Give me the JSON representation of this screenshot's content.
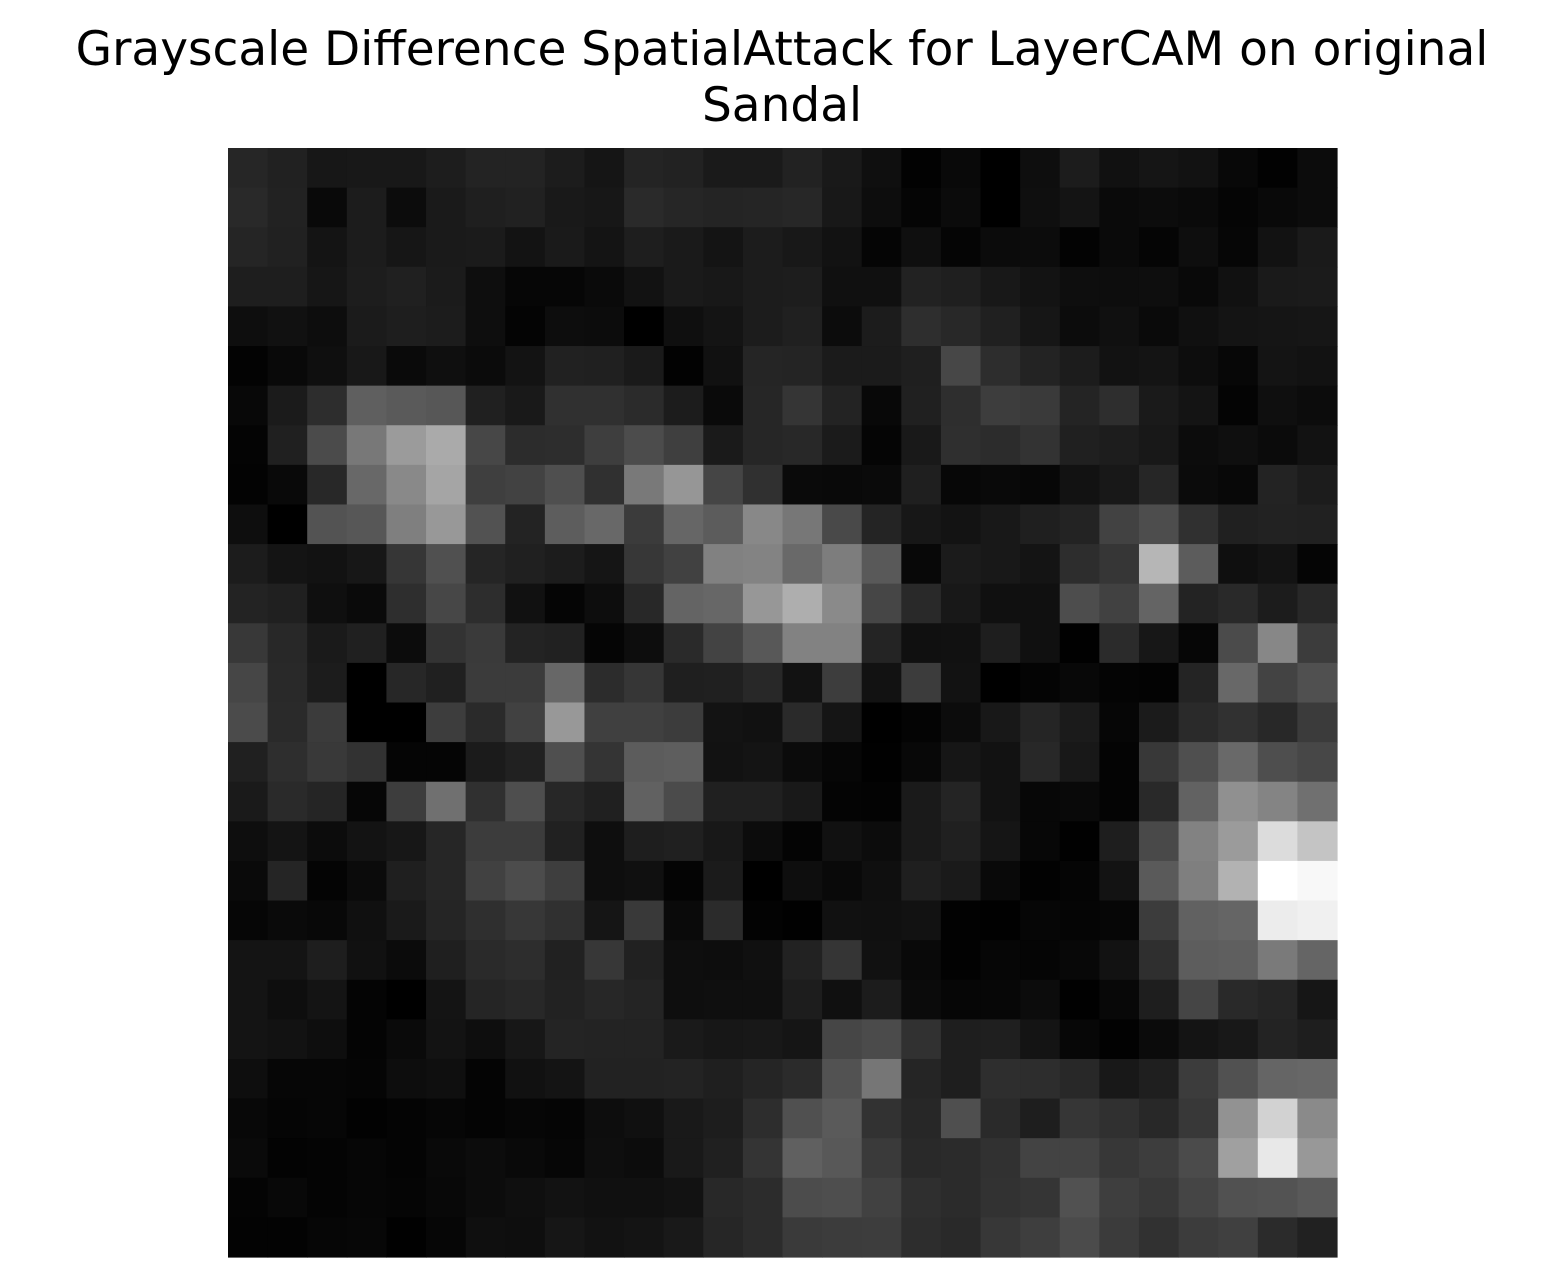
{
  "chart_data": {
    "type": "heatmap",
    "title_lines": [
      "Grayscale Difference SpatialAttack for LayerCAM on original",
      "Sandal"
    ],
    "colormap": "gray",
    "axes_visible": false,
    "grid": false,
    "legend": "none",
    "rows": 28,
    "cols": 28,
    "values": [
      [
        38,
        33,
        23,
        24,
        24,
        29,
        35,
        35,
        28,
        21,
        36,
        34,
        26,
        26,
        34,
        25,
        15,
        2,
        9,
        0,
        14,
        28,
        17,
        21,
        18,
        8,
        2,
        12
      ],
      [
        41,
        34,
        9,
        28,
        12,
        26,
        31,
        33,
        25,
        23,
        42,
        38,
        36,
        37,
        39,
        24,
        13,
        5,
        11,
        0,
        15,
        20,
        10,
        12,
        10,
        5,
        9,
        12
      ],
      [
        37,
        33,
        20,
        28,
        22,
        26,
        27,
        19,
        26,
        20,
        30,
        26,
        20,
        28,
        24,
        18,
        5,
        15,
        5,
        11,
        12,
        3,
        10,
        5,
        14,
        6,
        18,
        26
      ],
      [
        30,
        30,
        22,
        29,
        32,
        27,
        14,
        6,
        6,
        10,
        18,
        26,
        24,
        28,
        29,
        16,
        16,
        34,
        31,
        24,
        19,
        14,
        13,
        14,
        9,
        17,
        26,
        27
      ],
      [
        14,
        17,
        13,
        27,
        30,
        28,
        14,
        4,
        13,
        12,
        0,
        15,
        20,
        28,
        32,
        12,
        28,
        46,
        40,
        32,
        22,
        12,
        16,
        10,
        16,
        20,
        21,
        22
      ],
      [
        3,
        9,
        15,
        24,
        10,
        15,
        11,
        19,
        33,
        32,
        26,
        2,
        17,
        37,
        36,
        27,
        27,
        31,
        71,
        45,
        35,
        28,
        18,
        20,
        13,
        7,
        20,
        18
      ],
      [
        8,
        27,
        45,
        95,
        90,
        87,
        32,
        25,
        48,
        48,
        43,
        28,
        10,
        38,
        53,
        35,
        8,
        32,
        46,
        61,
        58,
        36,
        46,
        26,
        20,
        4,
        15,
        12
      ],
      [
        4,
        32,
        75,
        120,
        155,
        170,
        71,
        44,
        45,
        62,
        76,
        63,
        26,
        38,
        40,
        27,
        5,
        25,
        47,
        44,
        51,
        32,
        29,
        24,
        12,
        15,
        11,
        18
      ],
      [
        3,
        9,
        40,
        104,
        137,
        165,
        63,
        66,
        79,
        48,
        121,
        150,
        69,
        48,
        10,
        9,
        10,
        31,
        7,
        9,
        7,
        18,
        24,
        38,
        11,
        8,
        35,
        28
      ],
      [
        14,
        0,
        83,
        87,
        127,
        152,
        82,
        35,
        93,
        104,
        59,
        102,
        92,
        136,
        119,
        73,
        36,
        23,
        19,
        24,
        31,
        35,
        66,
        77,
        48,
        32,
        34,
        33
      ],
      [
        28,
        20,
        18,
        23,
        54,
        80,
        37,
        32,
        28,
        21,
        55,
        65,
        129,
        131,
        105,
        125,
        89,
        8,
        27,
        24,
        20,
        45,
        54,
        182,
        92,
        15,
        19,
        5
      ],
      [
        35,
        32,
        15,
        10,
        46,
        71,
        45,
        17,
        5,
        13,
        40,
        100,
        103,
        151,
        174,
        138,
        70,
        41,
        24,
        16,
        16,
        77,
        65,
        100,
        35,
        41,
        28,
        40
      ],
      [
        56,
        40,
        26,
        32,
        12,
        51,
        58,
        35,
        33,
        5,
        13,
        42,
        67,
        88,
        130,
        130,
        36,
        16,
        17,
        30,
        16,
        1,
        43,
        23,
        6,
        75,
        135,
        60
      ],
      [
        70,
        41,
        28,
        0,
        39,
        32,
        59,
        59,
        103,
        44,
        54,
        31,
        32,
        40,
        18,
        61,
        18,
        60,
        18,
        0,
        4,
        8,
        4,
        3,
        36,
        104,
        67,
        80
      ],
      [
        75,
        42,
        59,
        0,
        0,
        61,
        42,
        65,
        152,
        64,
        64,
        60,
        19,
        17,
        42,
        21,
        0,
        4,
        12,
        24,
        37,
        27,
        6,
        27,
        42,
        49,
        40,
        59
      ],
      [
        32,
        46,
        57,
        50,
        5,
        5,
        27,
        33,
        79,
        52,
        92,
        94,
        18,
        20,
        11,
        6,
        1,
        8,
        22,
        18,
        40,
        24,
        4,
        56,
        79,
        105,
        78,
        71
      ],
      [
        26,
        42,
        37,
        6,
        61,
        112,
        48,
        78,
        39,
        32,
        97,
        75,
        32,
        32,
        25,
        4,
        3,
        26,
        36,
        18,
        7,
        9,
        4,
        41,
        98,
        144,
        132,
        112
      ],
      [
        14,
        20,
        12,
        19,
        23,
        38,
        60,
        60,
        33,
        14,
        30,
        32,
        24,
        12,
        4,
        17,
        12,
        26,
        32,
        21,
        7,
        1,
        30,
        73,
        130,
        155,
        220,
        196
      ],
      [
        10,
        37,
        4,
        11,
        31,
        38,
        65,
        76,
        62,
        14,
        16,
        4,
        27,
        0,
        14,
        9,
        15,
        31,
        26,
        9,
        2,
        5,
        19,
        90,
        127,
        178,
        255,
        248
      ],
      [
        6,
        10,
        8,
        16,
        26,
        37,
        47,
        55,
        48,
        21,
        57,
        10,
        43,
        3,
        1,
        17,
        16,
        18,
        2,
        1,
        6,
        5,
        6,
        60,
        97,
        101,
        236,
        240
      ],
      [
        20,
        20,
        30,
        17,
        11,
        31,
        42,
        45,
        33,
        55,
        33,
        14,
        13,
        16,
        34,
        53,
        17,
        9,
        2,
        6,
        5,
        8,
        18,
        47,
        93,
        95,
        122,
        101
      ],
      [
        20,
        14,
        20,
        4,
        0,
        20,
        37,
        40,
        34,
        39,
        36,
        14,
        15,
        15,
        29,
        16,
        28,
        11,
        6,
        7,
        12,
        1,
        8,
        30,
        69,
        41,
        37,
        22
      ],
      [
        20,
        18,
        14,
        4,
        10,
        19,
        14,
        23,
        36,
        35,
        35,
        26,
        23,
        24,
        21,
        70,
        75,
        49,
        30,
        31,
        20,
        7,
        2,
        11,
        20,
        24,
        35,
        30
      ],
      [
        14,
        6,
        6,
        5,
        13,
        15,
        4,
        17,
        20,
        34,
        34,
        35,
        31,
        37,
        43,
        82,
        118,
        37,
        30,
        46,
        45,
        40,
        24,
        31,
        60,
        81,
        101,
        103
      ],
      [
        8,
        5,
        6,
        2,
        4,
        6,
        4,
        6,
        5,
        13,
        16,
        25,
        29,
        45,
        80,
        90,
        50,
        39,
        79,
        42,
        30,
        54,
        48,
        40,
        56,
        146,
        210,
        138
      ],
      [
        10,
        3,
        4,
        6,
        4,
        9,
        12,
        9,
        6,
        14,
        12,
        25,
        32,
        52,
        96,
        88,
        58,
        41,
        43,
        49,
        67,
        67,
        55,
        61,
        75,
        160,
        232,
        152
      ],
      [
        4,
        8,
        4,
        6,
        5,
        8,
        12,
        15,
        18,
        16,
        16,
        18,
        40,
        44,
        76,
        78,
        65,
        47,
        43,
        50,
        53,
        81,
        62,
        56,
        69,
        81,
        83,
        89
      ],
      [
        3,
        3,
        6,
        7,
        1,
        6,
        15,
        14,
        22,
        18,
        20,
        25,
        38,
        44,
        58,
        60,
        61,
        45,
        41,
        55,
        62,
        75,
        59,
        49,
        60,
        64,
        43,
        33
      ]
    ]
  }
}
